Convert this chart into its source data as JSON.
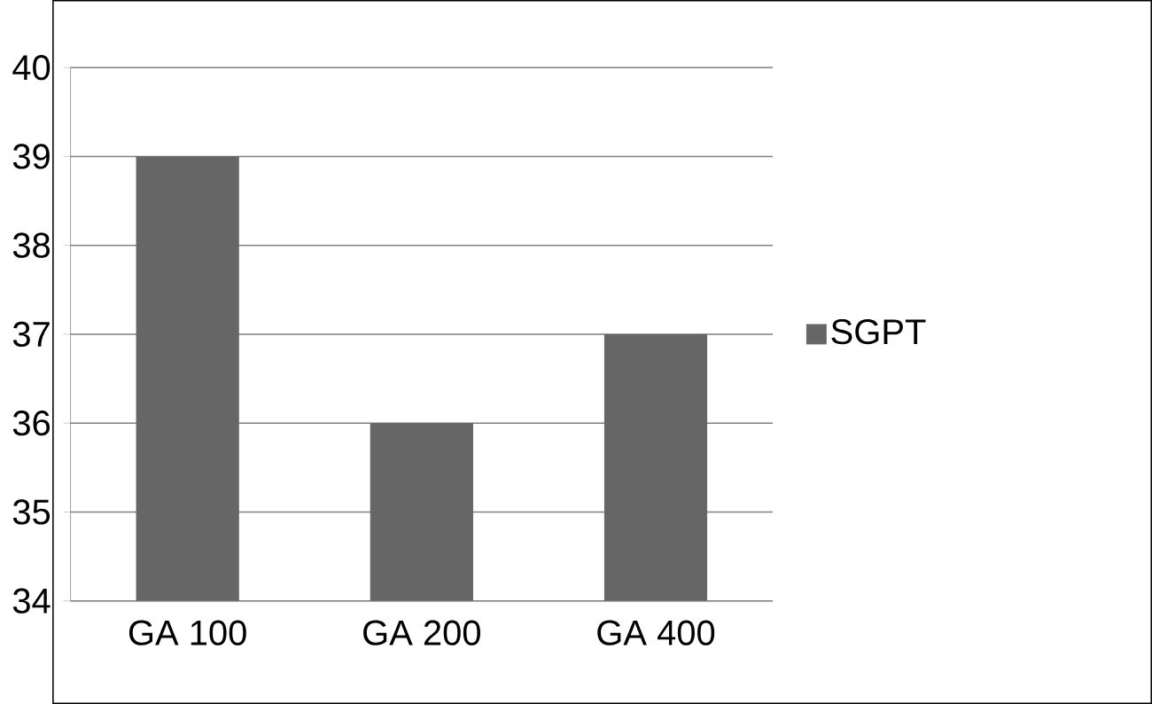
{
  "chart_data": {
    "type": "bar",
    "categories": [
      "GA 100",
      "GA 200",
      "GA 400"
    ],
    "series": [
      {
        "name": "SGPT",
        "color": "#666666",
        "values": [
          39,
          36,
          37
        ]
      }
    ],
    "ylim": [
      34,
      40
    ],
    "yticks": [
      34,
      35,
      36,
      37,
      38,
      39,
      40
    ],
    "grid": "y",
    "legend": "right"
  }
}
